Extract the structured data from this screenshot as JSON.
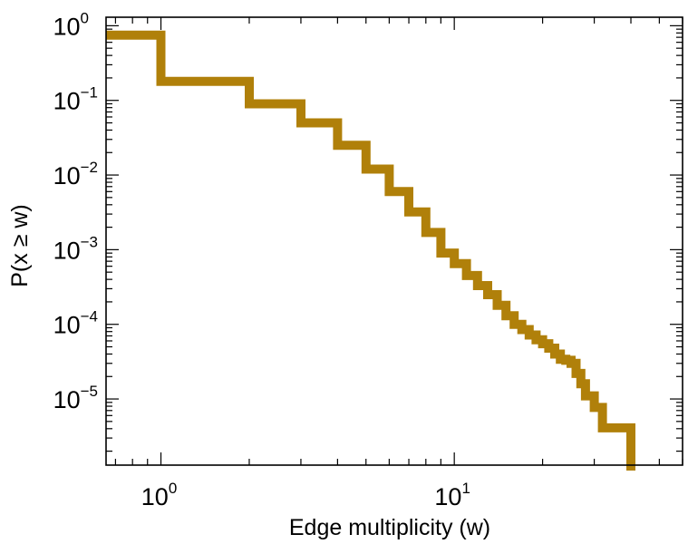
{
  "chart_data": {
    "type": "line",
    "step": true,
    "xlabel": "Edge multiplicity (w)",
    "ylabel": "P(x ≥ w)",
    "x_scale": "log",
    "y_scale": "log",
    "xlim": [
      0.65,
      60
    ],
    "ylim": [
      1.3e-06,
      1.3
    ],
    "grid": false,
    "legend": "none",
    "x_ticks": [
      {
        "base": "10",
        "exp": "0",
        "value": 1
      },
      {
        "base": "10",
        "exp": "1",
        "value": 10
      }
    ],
    "y_ticks": [
      {
        "base": "10",
        "exp": "0",
        "value": 1
      },
      {
        "base": "10",
        "exp": "−1",
        "value": 0.1
      },
      {
        "base": "10",
        "exp": "−2",
        "value": 0.01
      },
      {
        "base": "10",
        "exp": "−3",
        "value": 0.001
      },
      {
        "base": "10",
        "exp": "−4",
        "value": 0.0001
      },
      {
        "base": "10",
        "exp": "−5",
        "value": 1e-05
      }
    ],
    "series": [
      {
        "color": "#b0800a",
        "x": [
          0.65,
          1,
          2,
          3,
          4,
          5,
          6,
          7,
          8,
          9,
          10,
          11,
          12,
          13,
          14,
          15,
          16,
          17,
          18,
          19,
          20,
          21,
          22,
          23,
          24,
          25,
          26,
          27,
          28,
          30,
          32,
          40
        ],
        "y": [
          0.75,
          0.18,
          0.09,
          0.05,
          0.025,
          0.012,
          0.006,
          0.0032,
          0.0017,
          0.0009,
          0.00065,
          0.00045,
          0.00033,
          0.00025,
          0.00018,
          0.00013,
          0.0001,
          8.5e-05,
          7.2e-05,
          6.2e-05,
          5.5e-05,
          4.8e-05,
          4e-05,
          3.4e-05,
          3.3e-05,
          3e-05,
          2.2e-05,
          1.6e-05,
          1.1e-05,
          7.7e-06,
          4.1e-06,
          1.6e-06
        ]
      }
    ]
  }
}
